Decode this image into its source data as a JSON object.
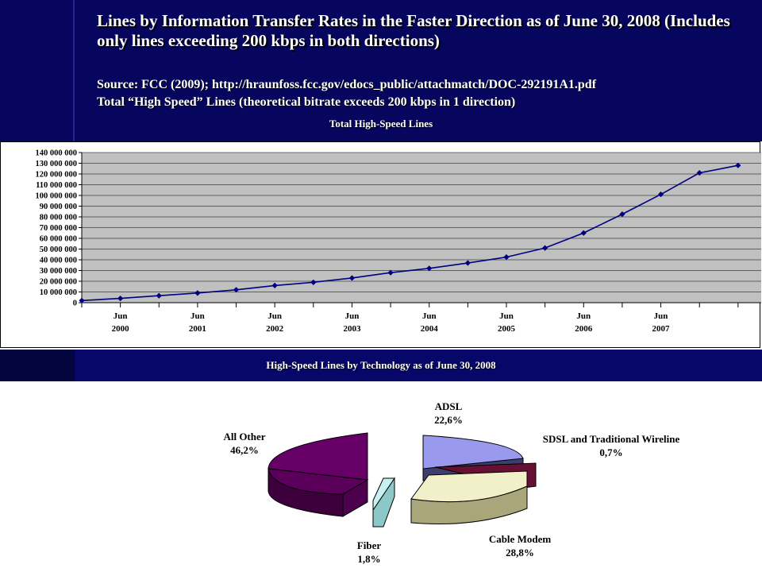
{
  "slide": {
    "title": "Lines by Information Transfer Rates in the Faster Direction as of June 30, 2008 (Includes only lines exceeding 200 kbps in both directions)",
    "source_line": "Source: FCC (2009); http://hraunfoss.fcc.gov/edocs_public/attachmatch/DOC-292191A1.pdf",
    "subtitle_line": "Total “High Speed” Lines (theoretical bitrate exceeds 200 kbps in 1 direction)"
  },
  "chart_data": [
    {
      "type": "line",
      "title": "Total High-Speed Lines",
      "xlabel": "",
      "ylabel": "",
      "ylim": [
        0,
        140000000
      ],
      "y_ticks": [
        "0",
        "10 000 000",
        "20 000 000",
        "30 000 000",
        "40 000 000",
        "50 000 000",
        "60 000 000",
        "70 000 000",
        "80 000 000",
        "90 000 000",
        "100 000 000",
        "110 000 000",
        "120 000 000",
        "130 000 000",
        "140 000 000"
      ],
      "x_tick_labels": [
        {
          "month": "Jun",
          "year": "2000"
        },
        {
          "month": "Jun",
          "year": "2001"
        },
        {
          "month": "Jun",
          "year": "2002"
        },
        {
          "month": "Jun",
          "year": "2003"
        },
        {
          "month": "Jun",
          "year": "2004"
        },
        {
          "month": "Jun",
          "year": "2005"
        },
        {
          "month": "Jun",
          "year": "2006"
        },
        {
          "month": "Jun",
          "year": "2007"
        }
      ],
      "grid": true,
      "colors": {
        "line": "#000080",
        "plot_bg": "#c0c0c0",
        "grid": "#000000"
      },
      "series": [
        {
          "values": [
            2000000,
            4000000,
            6500000,
            9000000,
            12000000,
            16000000,
            19000000,
            23000000,
            28000000,
            32000000,
            37000000,
            42500000,
            51000000,
            65000000,
            82500000,
            101000000,
            121000000,
            128000000
          ]
        }
      ]
    },
    {
      "type": "pie",
      "title": "High-Speed Lines by Technology as of June 30, 2008",
      "slices": [
        {
          "label": "ADSL",
          "percent_label": "22,6%",
          "value": 22.6,
          "color": "#9999ee"
        },
        {
          "label": "SDSL and Traditional Wireline",
          "percent_label": "0,7%",
          "value": 0.7,
          "color": "#661133"
        },
        {
          "label": "Cable Modem",
          "percent_label": "28,8%",
          "value": 28.8,
          "color": "#f2f0c8"
        },
        {
          "label": "Fiber",
          "percent_label": "1,8%",
          "value": 1.8,
          "color": "#c8f0f0"
        },
        {
          "label": "All Other",
          "percent_label": "46,2%",
          "value": 46.2,
          "color": "#660066"
        }
      ]
    }
  ]
}
